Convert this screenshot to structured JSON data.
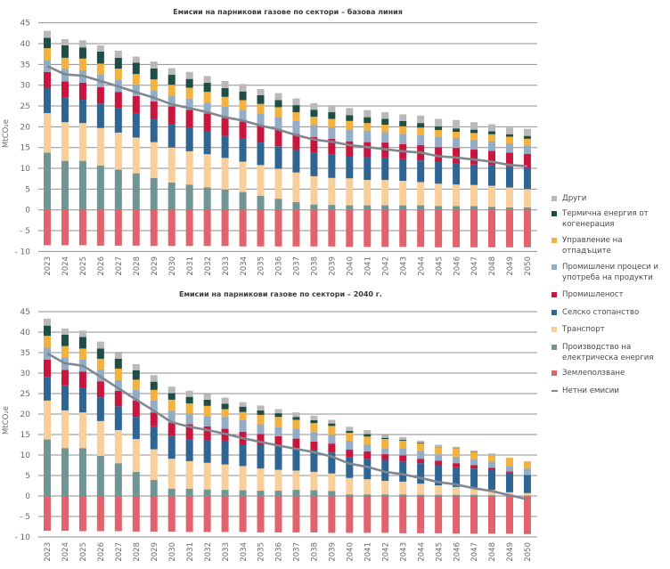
{
  "legend": {
    "placement": "right",
    "items": [
      {
        "key": "other",
        "label": "Други",
        "color": "#b9b9b9",
        "marker": "box"
      },
      {
        "key": "chp",
        "label": "Термична енергия от когенерация",
        "color": "#1f4e46",
        "marker": "box"
      },
      {
        "key": "waste",
        "label": "Управление на отпадъците",
        "color": "#f2b23d",
        "marker": "box"
      },
      {
        "key": "ippu",
        "label": "Промишлени процеси и употреба на продукти",
        "color": "#93adc6",
        "marker": "box"
      },
      {
        "key": "industry",
        "label": "Промишленост",
        "color": "#c8163f",
        "marker": "box"
      },
      {
        "key": "agriculture",
        "label": "Селско стопанство",
        "color": "#2f6592",
        "marker": "box"
      },
      {
        "key": "transport",
        "label": "Транспорт",
        "color": "#f8cf9a",
        "marker": "box"
      },
      {
        "key": "power",
        "label": "Производство на електрическа енергия",
        "color": "#719595",
        "marker": "box"
      },
      {
        "key": "land_use",
        "label": "Землеползване",
        "color": "#e0636d",
        "marker": "box"
      },
      {
        "key": "net",
        "label": "Нетни емисии",
        "color": "#7f8790",
        "marker": "line"
      }
    ]
  },
  "chart_data": [
    {
      "type": "bar",
      "stacked": true,
      "title": "Емисии на парникови газове по сектори – базова линия",
      "xlabel": "",
      "ylabel": "MtCO₂e",
      "ylim": [
        -10,
        45
      ],
      "grid": true,
      "legend": "right",
      "yticks": [
        {
          "value": 45,
          "label": "45"
        },
        {
          "value": 40,
          "label": "40"
        },
        {
          "value": 35,
          "label": "35"
        },
        {
          "value": 30,
          "label": "30"
        },
        {
          "value": 25,
          "label": "25"
        },
        {
          "value": 20,
          "label": "20"
        },
        {
          "value": 15,
          "label": "15"
        },
        {
          "value": 10,
          "label": "10"
        },
        {
          "value": 5,
          "label": "5"
        },
        {
          "value": 0,
          "label": "0"
        },
        {
          "value": -5,
          "label": "- 5"
        },
        {
          "value": -10,
          "label": "- 10"
        }
      ],
      "categories": [
        "2023",
        "2024",
        "2025",
        "2026",
        "2027",
        "2028",
        "2029",
        "2030",
        "2031",
        "2032",
        "2033",
        "2034",
        "2035",
        "2036",
        "2037",
        "2038",
        "2039",
        "2040",
        "2041",
        "2042",
        "2043",
        "2044",
        "2045",
        "2046",
        "2047",
        "2048",
        "2049",
        "2050"
      ],
      "series": [
        {
          "key": "land_use",
          "name": "Землеползване",
          "color": "#e0636d",
          "values": [
            -8.5,
            -8.5,
            -8.5,
            -8.6,
            -8.6,
            -8.6,
            -8.7,
            -8.7,
            -8.7,
            -8.7,
            -8.7,
            -8.8,
            -8.8,
            -8.8,
            -8.8,
            -8.8,
            -8.8,
            -8.9,
            -8.9,
            -8.9,
            -8.9,
            -8.9,
            -9.0,
            -9.0,
            -9.0,
            -9.0,
            -9.0,
            -9.0
          ]
        },
        {
          "key": "power",
          "name": "Производство на електрическа енергия",
          "color": "#719595",
          "values": [
            13.8,
            11.8,
            11.8,
            10.7,
            9.7,
            8.8,
            7.7,
            6.6,
            6.1,
            5.4,
            4.9,
            4.3,
            3.4,
            2.7,
            1.9,
            1.3,
            1.2,
            1.1,
            1.1,
            1.1,
            1.1,
            1.1,
            0.9,
            0.9,
            0.9,
            0.7,
            0.6,
            0.6
          ]
        },
        {
          "key": "transport",
          "name": "Транспорт",
          "color": "#f8cf9a",
          "values": [
            9.5,
            9.3,
            9.1,
            9.0,
            8.9,
            8.6,
            8.6,
            8.4,
            8.0,
            8.0,
            7.6,
            7.3,
            7.4,
            7.2,
            7.1,
            6.8,
            6.5,
            6.5,
            6.1,
            6.1,
            5.9,
            5.6,
            5.4,
            5.2,
            5.1,
            5.1,
            4.8,
            4.4
          ]
        },
        {
          "key": "agriculture",
          "name": "Селско стопанство",
          "color": "#2f6592",
          "values": [
            6.1,
            5.9,
            5.6,
            5.9,
            5.8,
            5.8,
            5.7,
            5.6,
            5.8,
            5.6,
            5.3,
            5.7,
            5.4,
            5.4,
            5.4,
            5.6,
            5.6,
            5.3,
            5.5,
            5.4,
            5.2,
            5.2,
            5.2,
            5.1,
            4.9,
            5.0,
            4.9,
            5.1
          ]
        },
        {
          "key": "industry",
          "name": "Промишленост",
          "color": "#c8163f",
          "values": [
            3.8,
            3.9,
            4.1,
            3.9,
            4.0,
            4.2,
            4.1,
            4.3,
            4.2,
            4.2,
            4.3,
            4.0,
            4.2,
            4.1,
            3.9,
            3.8,
            3.8,
            3.6,
            3.6,
            3.6,
            3.6,
            3.7,
            3.6,
            3.7,
            3.6,
            3.4,
            3.5,
            3.4
          ]
        },
        {
          "key": "ippu",
          "name": "Промишлени процеси и употреба на продукти",
          "color": "#93adc6",
          "values": [
            2.9,
            3.0,
            3.0,
            3.0,
            3.0,
            2.8,
            2.7,
            2.6,
            2.7,
            2.6,
            2.7,
            2.8,
            2.8,
            2.9,
            3.1,
            2.9,
            2.8,
            2.9,
            2.8,
            2.5,
            2.5,
            2.4,
            2.4,
            2.4,
            2.4,
            2.3,
            2.2,
            2.0
          ]
        },
        {
          "key": "waste",
          "name": "Управление на отпадъците",
          "color": "#f2b23d",
          "values": [
            2.8,
            2.7,
            2.8,
            2.7,
            2.6,
            2.5,
            2.6,
            2.6,
            2.6,
            2.6,
            2.4,
            2.3,
            2.3,
            2.4,
            2.1,
            2.0,
            2.0,
            2.0,
            1.8,
            1.8,
            1.8,
            1.8,
            1.7,
            1.5,
            1.6,
            1.7,
            1.6,
            1.6
          ]
        },
        {
          "key": "chp",
          "name": "Термична енергия от когенерация",
          "color": "#1f4e46",
          "values": [
            2.5,
            3.0,
            2.7,
            2.9,
            2.6,
            2.7,
            2.6,
            2.4,
            2.1,
            2.2,
            2.1,
            2.1,
            2.1,
            1.7,
            1.7,
            1.7,
            1.6,
            1.4,
            1.4,
            1.4,
            1.3,
            1.1,
            0.9,
            0.8,
            0.8,
            0.7,
            0.6,
            0.7
          ]
        },
        {
          "key": "other",
          "name": "Други",
          "color": "#b9b9b9",
          "values": [
            1.7,
            1.5,
            1.7,
            1.5,
            1.7,
            1.5,
            1.7,
            1.6,
            1.7,
            1.6,
            1.7,
            1.8,
            1.5,
            1.7,
            1.6,
            1.6,
            1.7,
            1.7,
            1.7,
            1.6,
            1.6,
            1.8,
            1.8,
            2.0,
            1.8,
            1.7,
            1.6,
            1.7
          ]
        }
      ],
      "line": {
        "key": "net",
        "name": "Нетни емисии",
        "color": "#7f8790",
        "values": [
          34.6,
          32.6,
          32.3,
          31.0,
          29.7,
          28.3,
          27.0,
          25.4,
          24.5,
          23.5,
          22.3,
          21.5,
          20.3,
          19.3,
          18.0,
          16.9,
          16.4,
          15.6,
          15.1,
          14.6,
          14.1,
          13.8,
          12.9,
          12.6,
          12.1,
          11.6,
          10.8,
          10.5
        ]
      }
    },
    {
      "type": "bar",
      "stacked": true,
      "title": "Емисии на парникови газове по сектори – 2040 г.",
      "xlabel": "",
      "ylabel": "MtCO₂e",
      "ylim": [
        -10,
        45
      ],
      "grid": true,
      "legend": "right",
      "yticks": [
        {
          "value": 45,
          "label": "45"
        },
        {
          "value": 40,
          "label": "40"
        },
        {
          "value": 35,
          "label": "35"
        },
        {
          "value": 30,
          "label": "30"
        },
        {
          "value": 25,
          "label": "25"
        },
        {
          "value": 20,
          "label": "20"
        },
        {
          "value": 15,
          "label": "15"
        },
        {
          "value": 10,
          "label": "10"
        },
        {
          "value": 5,
          "label": "5"
        },
        {
          "value": 0,
          "label": "0"
        },
        {
          "value": -5,
          "label": "- 5"
        },
        {
          "value": -10,
          "label": "- 10"
        }
      ],
      "categories": [
        "2023",
        "2024",
        "2025",
        "2026",
        "2027",
        "2028",
        "2029",
        "2030",
        "2031",
        "2032",
        "2033",
        "2034",
        "2035",
        "2036",
        "2037",
        "2038",
        "2039",
        "2040",
        "2041",
        "2042",
        "2043",
        "2044",
        "2045",
        "2046",
        "2047",
        "2048",
        "2049",
        "2050"
      ],
      "series": [
        {
          "key": "land_use",
          "name": "Землеползване",
          "color": "#e0636d",
          "values": [
            -8.5,
            -8.5,
            -8.6,
            -8.6,
            -8.6,
            -8.7,
            -8.7,
            -8.7,
            -8.8,
            -8.8,
            -8.8,
            -8.8,
            -8.9,
            -8.9,
            -8.9,
            -8.9,
            -9.0,
            -9.0,
            -9.0,
            -9.0,
            -9.1,
            -9.1,
            -9.1,
            -9.2,
            -9.2,
            -9.2,
            -9.2,
            -9.3
          ]
        },
        {
          "key": "power",
          "name": "Производство на електрическа енергия",
          "color": "#719595",
          "values": [
            13.8,
            11.7,
            11.7,
            9.8,
            8.0,
            5.9,
            3.9,
            1.8,
            1.8,
            1.6,
            1.5,
            1.4,
            1.3,
            1.3,
            1.5,
            1.4,
            1.2,
            0.4,
            0.4,
            0.4,
            0.4,
            0.3,
            0.3,
            0.3,
            0.3,
            0.2,
            0.2,
            0.1
          ]
        },
        {
          "key": "transport",
          "name": "Транспорт",
          "color": "#f8cf9a",
          "values": [
            9.5,
            9.2,
            8.7,
            8.5,
            8.1,
            8.0,
            7.5,
            7.3,
            6.7,
            6.5,
            6.2,
            5.9,
            5.4,
            5.1,
            4.7,
            4.5,
            4.3,
            4.0,
            3.7,
            3.3,
            3.1,
            2.7,
            2.3,
            1.9,
            1.6,
            1.3,
            0.7,
            0.6
          ]
        },
        {
          "key": "agriculture",
          "name": "Селско стопанство",
          "color": "#2f6592",
          "values": [
            5.8,
            6.1,
            6.0,
            5.8,
            5.8,
            5.4,
            5.6,
            5.5,
            5.4,
            5.5,
            5.8,
            5.1,
            5.7,
            6.0,
            5.5,
            5.2,
            5.1,
            5.1,
            5.0,
            5.1,
            4.9,
            5.0,
            4.9,
            4.8,
            4.8,
            4.9,
            4.8,
            4.3
          ]
        },
        {
          "key": "industry",
          "name": "Промишленост",
          "color": "#c8163f",
          "values": [
            4.2,
            3.8,
            4.0,
            3.9,
            3.8,
            4.0,
            3.4,
            3.3,
            3.6,
            3.4,
            2.9,
            3.3,
            2.7,
            2.2,
            2.3,
            2.2,
            2.2,
            1.8,
            1.8,
            1.4,
            1.5,
            1.1,
            1.1,
            1.0,
            0.8,
            0.5,
            0.3,
            0.1
          ]
        },
        {
          "key": "ippu",
          "name": "Промишлени процеси и употреба на продукти",
          "color": "#93adc6",
          "values": [
            2.9,
            3.0,
            2.9,
            2.9,
            2.6,
            2.6,
            2.9,
            3.0,
            2.6,
            2.5,
            2.9,
            2.9,
            2.4,
            2.3,
            2.4,
            2.4,
            2.1,
            2.2,
            1.6,
            1.5,
            1.8,
            1.9,
            1.6,
            1.6,
            1.4,
            1.5,
            1.3,
            1.6
          ]
        },
        {
          "key": "waste",
          "name": "Управление на отпадъците",
          "color": "#f2b23d",
          "values": [
            2.9,
            2.8,
            2.7,
            2.6,
            2.8,
            2.5,
            2.6,
            2.6,
            2.5,
            2.5,
            1.9,
            1.9,
            2.3,
            2.4,
            2.2,
            2.1,
            2.2,
            1.9,
            2.0,
            2.2,
            1.8,
            1.8,
            1.7,
            2.1,
            1.9,
            1.5,
            2.0,
            1.7
          ]
        },
        {
          "key": "chp",
          "name": "Термична енергия от когенерация",
          "color": "#1f4e46",
          "values": [
            2.5,
            2.8,
            2.8,
            2.5,
            2.4,
            2.3,
            2.0,
            1.6,
            1.6,
            1.5,
            1.3,
            1.3,
            1.1,
            0.9,
            0.7,
            0.7,
            0.6,
            0.5,
            0.6,
            0.3,
            0.2,
            0.2,
            0.1,
            0.1,
            0.1,
            0.0,
            0.0,
            0.0
          ]
        },
        {
          "key": "other",
          "name": "Други",
          "color": "#b9b9b9",
          "values": [
            1.7,
            1.5,
            1.6,
            1.7,
            1.4,
            1.5,
            1.6,
            1.6,
            1.5,
            1.4,
            1.5,
            1.1,
            1.2,
            1.0,
            1.1,
            1.1,
            0.9,
            1.0,
            1.0,
            0.7,
            0.7,
            0.5,
            0.5,
            0.2,
            0.2,
            0.5,
            0.1,
            0.1
          ]
        }
      ],
      "line": {
        "key": "net",
        "name": "Нетни емисии",
        "color": "#7f8790",
        "values": [
          34.8,
          32.4,
          31.8,
          29.1,
          26.3,
          23.5,
          20.8,
          18.0,
          16.9,
          16.1,
          15.2,
          14.1,
          13.2,
          12.3,
          11.5,
          10.7,
          9.6,
          7.9,
          7.1,
          5.9,
          5.3,
          4.4,
          3.4,
          2.8,
          1.9,
          1.2,
          0.2,
          -0.8
        ]
      }
    }
  ]
}
